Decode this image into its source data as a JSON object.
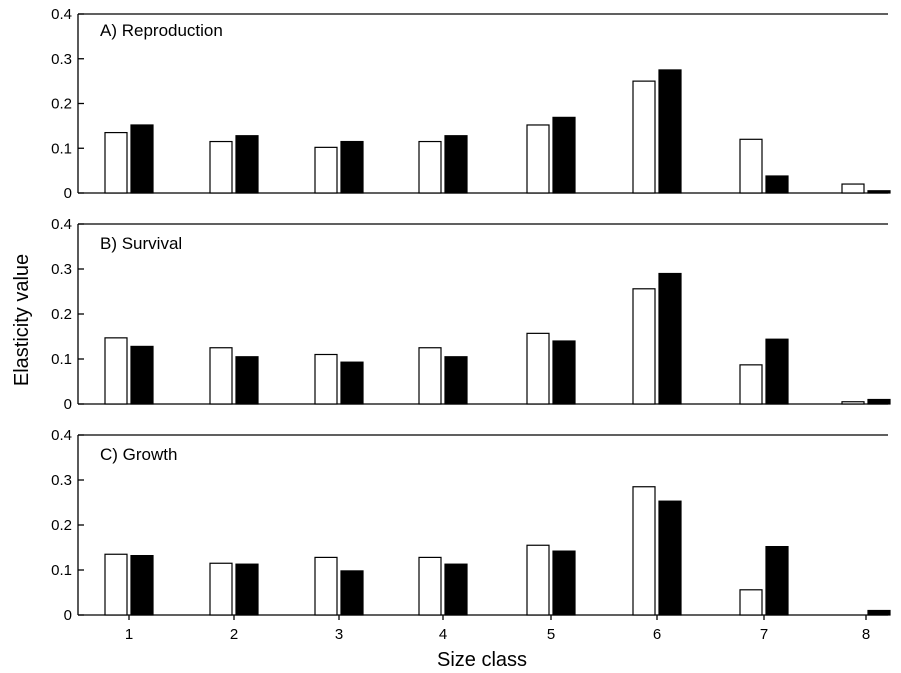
{
  "chart_data": {
    "type": "bar",
    "xlabel": "Size class",
    "ylabel": "Elasticity value",
    "categories": [
      "1",
      "2",
      "3",
      "4",
      "5",
      "6",
      "7",
      "8"
    ],
    "ylim": [
      0,
      0.4
    ],
    "yticks": [
      "0",
      "0.1",
      "0.2",
      "0.3",
      "0.4"
    ],
    "colors": {
      "open": "#ffffff",
      "filled": "#000000"
    },
    "panels": [
      {
        "label": "A) Reproduction",
        "series": [
          {
            "values": [
              0.135,
              0.115,
              0.102,
              0.115,
              0.152,
              0.25,
              0.12,
              0.02
            ]
          },
          {
            "values": [
              0.152,
              0.128,
              0.115,
              0.128,
              0.169,
              0.275,
              0.038,
              0.005
            ]
          }
        ]
      },
      {
        "label": "B) Survival",
        "series": [
          {
            "values": [
              0.147,
              0.125,
              0.11,
              0.125,
              0.157,
              0.256,
              0.087,
              0.005
            ]
          },
          {
            "values": [
              0.128,
              0.105,
              0.093,
              0.105,
              0.14,
              0.29,
              0.144,
              0.01
            ]
          }
        ]
      },
      {
        "label": "C) Growth",
        "series": [
          {
            "values": [
              0.135,
              0.115,
              0.128,
              0.128,
              0.155,
              0.285,
              0.056,
              0.0
            ]
          },
          {
            "values": [
              0.132,
              0.113,
              0.098,
              0.113,
              0.142,
              0.253,
              0.152,
              0.01
            ]
          }
        ]
      }
    ]
  }
}
